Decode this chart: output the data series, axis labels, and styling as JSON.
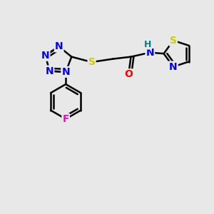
{
  "bg_color": "#e8e8e8",
  "bond_color": "#000000",
  "atom_colors": {
    "N": "#0000ee",
    "S": "#cccc00",
    "O": "#ff0000",
    "F": "#ff00cc",
    "H": "#008080",
    "C": "#000000"
  },
  "bond_width": 1.8,
  "font_size": 10,
  "figsize": [
    3.0,
    3.0
  ],
  "dpi": 100,
  "xlim": [
    0,
    10
  ],
  "ylim": [
    0,
    10
  ]
}
